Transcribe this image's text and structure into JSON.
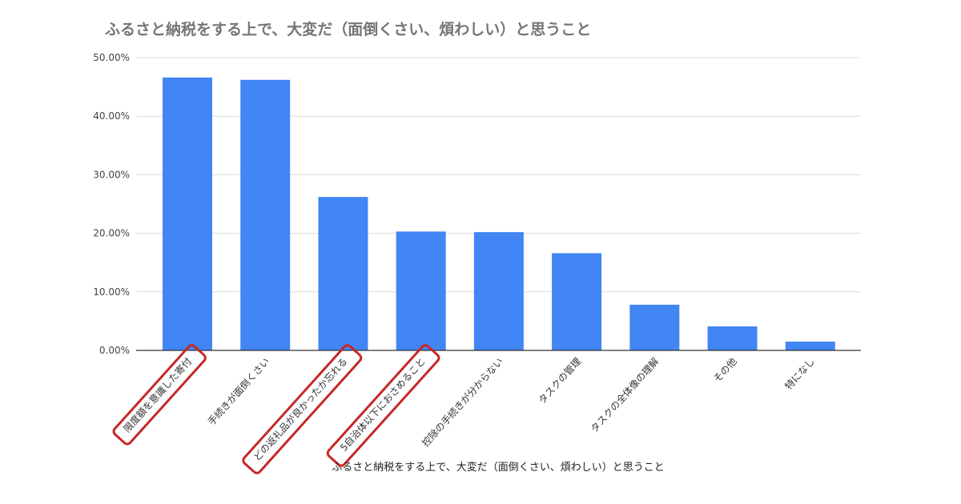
{
  "chart_data": {
    "type": "bar",
    "title": "ふるさと納税をする上で、大変だ（面倒くさい、煩わしい）と思うこと",
    "xlabel": "ふるさと納税をする上で、大変だ（面倒くさい、煩わしい）と思うこと",
    "ylabel": "",
    "categories": [
      "限度額を意識した寄付",
      "手続きが面倒くさい",
      "どの返礼品が良かったか忘れる",
      "5自治体以下におさめること",
      "控除の手続きが分からない",
      "タスクの管理",
      "タスクの全体像の理解",
      "その他",
      "特になし"
    ],
    "values": [
      46.6,
      46.2,
      26.2,
      20.3,
      20.2,
      16.6,
      7.8,
      4.1,
      1.5
    ],
    "ylim": [
      0,
      50
    ],
    "yticks": [
      "0.00%",
      "10.00%",
      "20.00%",
      "30.00%",
      "40.00%",
      "50.00%"
    ],
    "grid": true,
    "legend": "none",
    "bar_color": "#4285f4",
    "highlighted_categories": [
      "限度額を意識した寄付",
      "どの返礼品が良かったか忘れる",
      "5自治体以下におさめること"
    ],
    "highlight_color": "#c62828"
  }
}
